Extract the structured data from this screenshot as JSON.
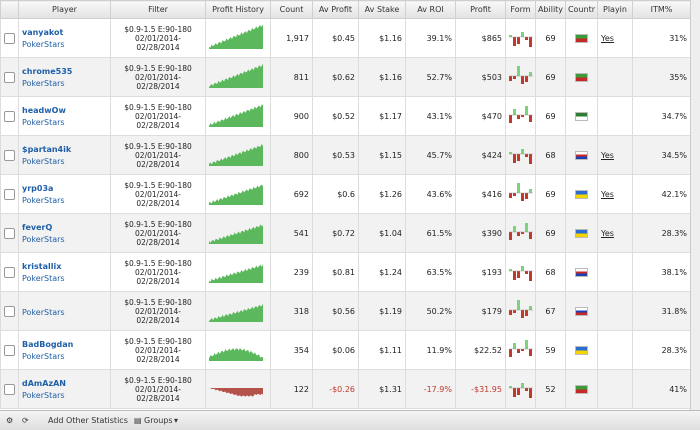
{
  "table": {
    "columns": [
      "Player",
      "Filter",
      "Profit History",
      "Count",
      "Av Profit",
      "Av Stake",
      "Av ROI",
      "Profit",
      "Form",
      "Ability",
      "Countr",
      "Playin",
      "ITM%"
    ],
    "rows": [
      {
        "player": "vanyakot",
        "site": "PokerStars",
        "filter": "$0.9-1.5 E:90-180 02/01/2014-02/28/2014",
        "count": "1,917",
        "av_profit": "$0.45",
        "av_stake": "$1.16",
        "av_roi": "39.1%",
        "profit": "$865",
        "ability": "69",
        "playing": "Yes",
        "itm": "31%"
      },
      {
        "player": "chrome535",
        "site": "PokerStars",
        "filter": "$0.9-1.5 E:90-180 02/01/2014-02/28/2014",
        "count": "811",
        "av_profit": "$0.62",
        "av_stake": "$1.16",
        "av_roi": "52.7%",
        "profit": "$503",
        "ability": "69",
        "itm": "35%"
      },
      {
        "player": "headwOw",
        "site": "PokerStars",
        "filter": "$0.9-1.5 E:90-180 02/01/2014-02/28/2014",
        "count": "900",
        "av_profit": "$0.52",
        "av_stake": "$1.17",
        "av_roi": "43.1%",
        "profit": "$470",
        "ability": "69",
        "itm": "34.7%"
      },
      {
        "player": "$partan4ik",
        "site": "PokerStars",
        "filter": "$0.9-1.5 E:90-180 02/01/2014-02/28/2014",
        "count": "800",
        "av_profit": "$0.53",
        "av_stake": "$1.15",
        "av_roi": "45.7%",
        "profit": "$424",
        "ability": "68",
        "playing": "Yes",
        "itm": "34.5%"
      },
      {
        "player": "yrp03a",
        "site": "PokerStars",
        "filter": "$0.9-1.5 E:90-180 02/01/2014-02/28/2014",
        "count": "692",
        "av_profit": "$0.6",
        "av_stake": "$1.26",
        "av_roi": "43.6%",
        "profit": "$416",
        "ability": "69",
        "playing": "Yes",
        "itm": "42.1%"
      },
      {
        "player": "feverQ",
        "site": "PokerStars",
        "filter": "$0.9-1.5 E:90-180 02/01/2014-02/28/2014",
        "count": "541",
        "av_profit": "$0.72",
        "av_stake": "$1.04",
        "av_roi": "61.5%",
        "profit": "$390",
        "ability": "69",
        "playing": "Yes",
        "itm": "28.3%"
      },
      {
        "player": "kristallix",
        "site": "PokerStars",
        "filter": "$0.9-1.5 E:90-180 02/01/2014-02/28/2014",
        "count": "239",
        "av_profit": "$0.81",
        "av_stake": "$1.24",
        "av_roi": "63.5%",
        "profit": "$193",
        "ability": "68",
        "itm": "38.1%"
      },
      {
        "site": "PokerStars",
        "filter": "$0.9-1.5 E:90-180 02/01/2014-02/28/2014",
        "count": "318",
        "av_profit": "$0.56",
        "av_stake": "$1.19",
        "av_roi": "50.2%",
        "profit": "$179",
        "ability": "67",
        "itm": "31.8%"
      },
      {
        "player": "BadBogdan",
        "site": "PokerStars",
        "filter": "$0.9-1.5 E:90-180 02/01/2014-02/28/2014",
        "count": "354",
        "av_profit": "$0.06",
        "av_stake": "$1.11",
        "av_roi": "11.9%",
        "profit": "$22.52",
        "ability": "59",
        "itm": "28.3%"
      },
      {
        "player": "dAmAzAN",
        "site": "PokerStars",
        "filter": "$0.9-1.5 E:90-180 02/01/2014-02/28/2014",
        "count": "122",
        "av_profit": "-$0.26",
        "av_stake": "$1.31",
        "av_roi": "-17.9%",
        "profit": "-$31.95",
        "ability": "52",
        "itm": "41%"
      }
    ]
  },
  "footer": {
    "add_stats": "Add Other Statistics",
    "groups": "Groups"
  }
}
